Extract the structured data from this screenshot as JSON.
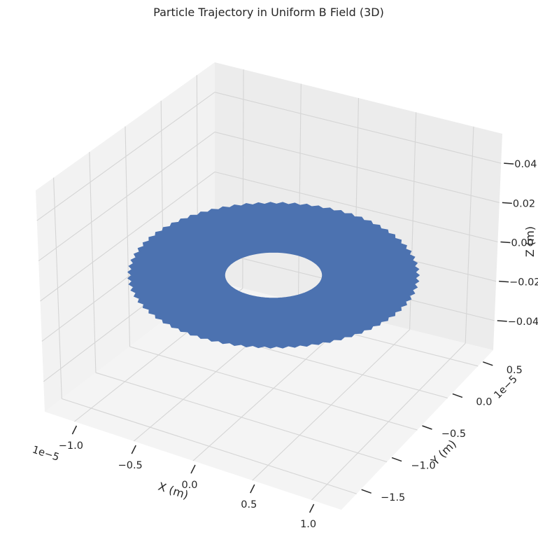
{
  "chart_data": {
    "type": "line",
    "projection": "3d",
    "title": "Particle Trajectory in Uniform B Field (3D)",
    "xlabel": "X (m)",
    "ylabel": "Y (m)",
    "zlabel": "Z (m)",
    "x_offset_text": "1e−5",
    "y_offset_text": "1e−5",
    "x_ticks": [
      "−1.0",
      "−0.5",
      "0.0",
      "0.5",
      "1.0"
    ],
    "y_ticks": [
      "−1.5",
      "−1.0",
      "−0.5",
      "0.0",
      "0.5"
    ],
    "z_ticks": [
      "−0.04",
      "−0.02",
      "0.00",
      "0.02",
      "0.04"
    ],
    "x_tick_values": [
      -1.0,
      -0.5,
      0.0,
      0.5,
      1.0
    ],
    "y_tick_values": [
      -1.5,
      -1.0,
      -0.5,
      0.0,
      0.5
    ],
    "z_tick_values": [
      -0.04,
      -0.02,
      0.0,
      0.02,
      0.04
    ],
    "xlim": [
      -1.25,
      1.25
    ],
    "ylim": [
      -1.75,
      0.75
    ],
    "zlim": [
      -0.055,
      0.055
    ],
    "grid": true,
    "series": [
      {
        "color": "#4c72b0",
        "center_x": 0.0,
        "center_y": -0.5,
        "z": 0.0,
        "inner_radius": 0.3,
        "outer_radius": 1.0
      }
    ]
  }
}
